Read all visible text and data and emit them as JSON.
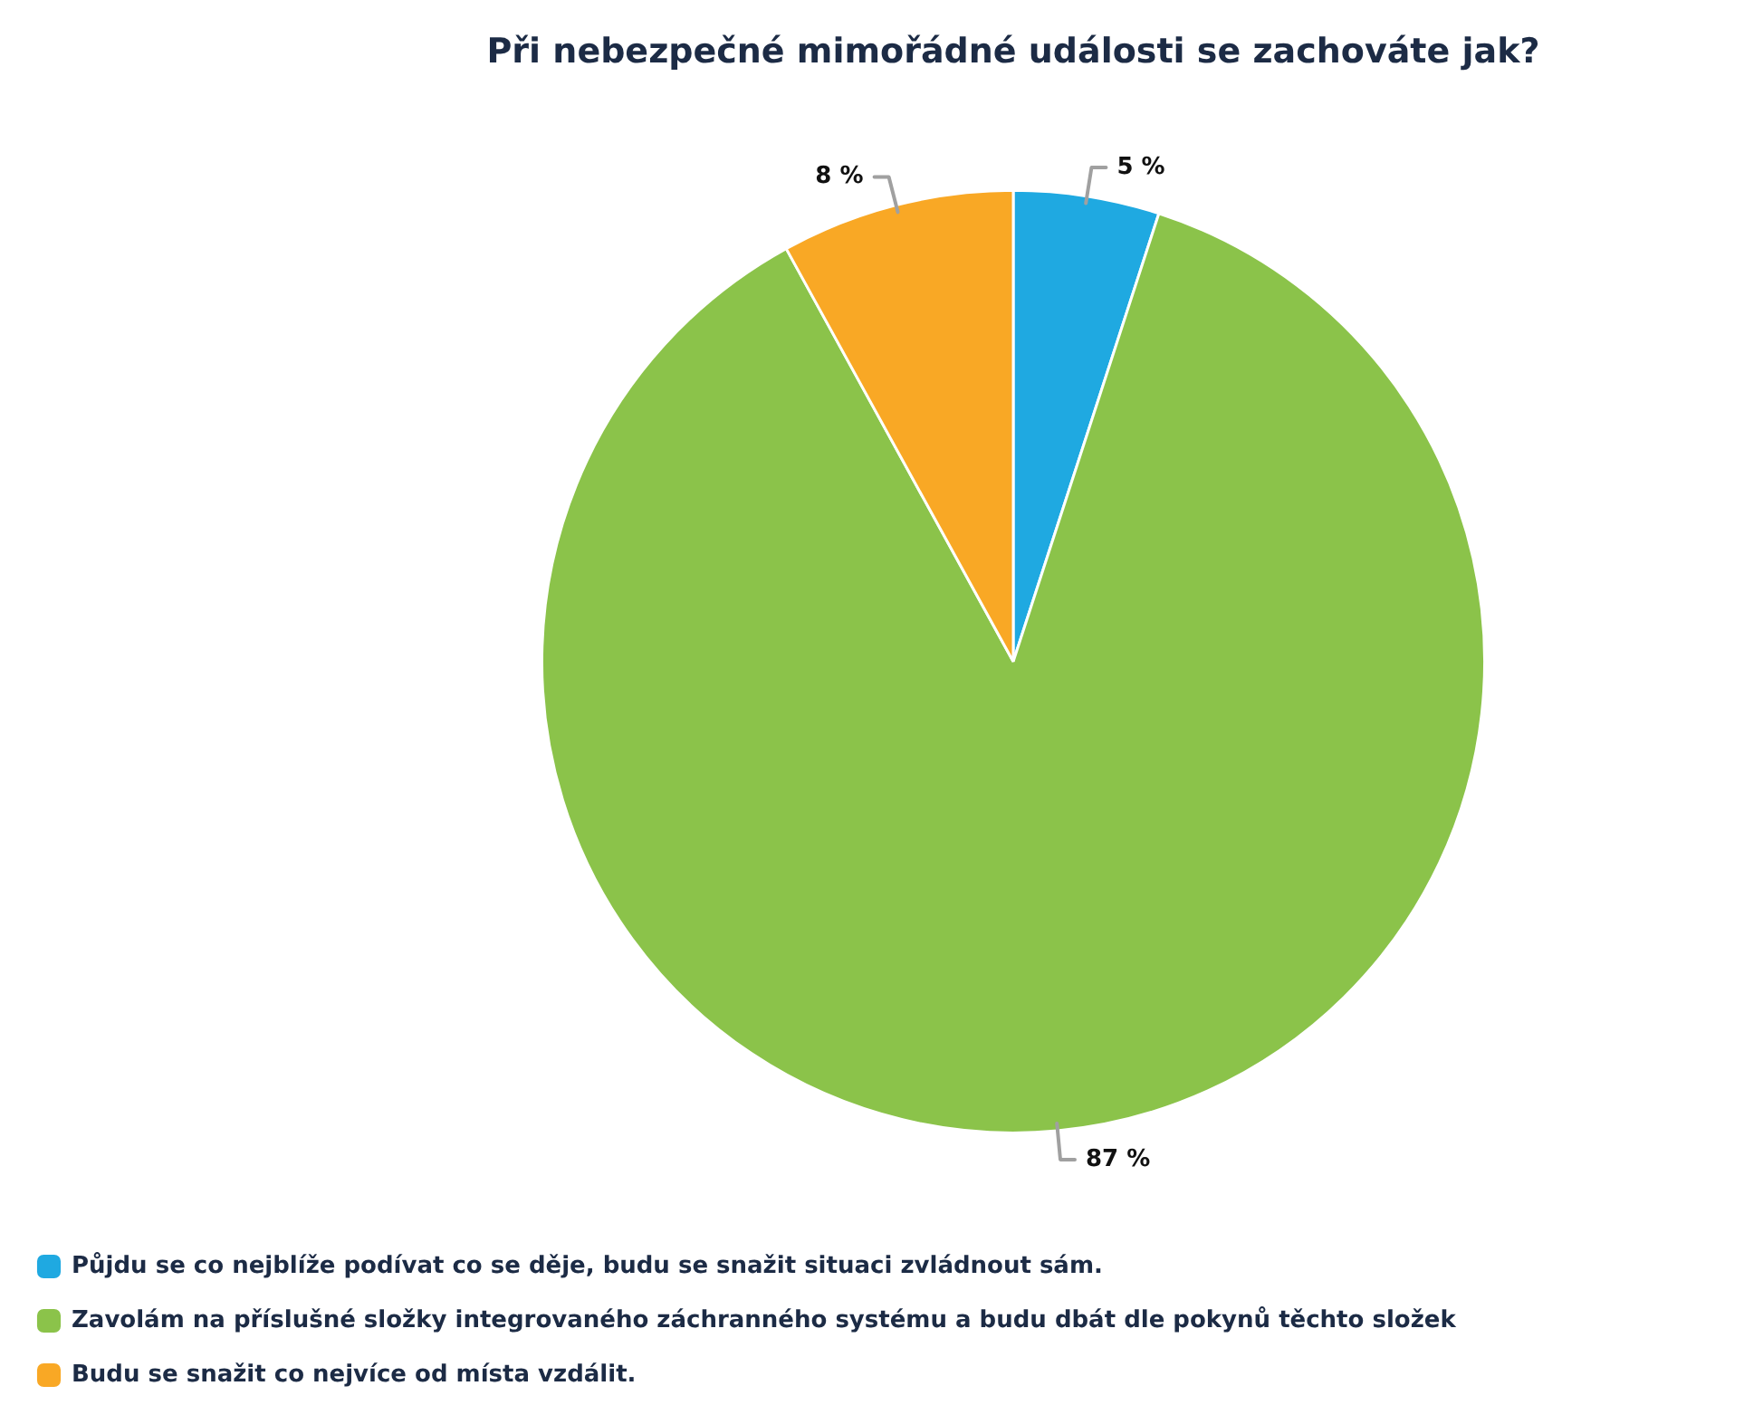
{
  "chart_data": {
    "type": "pie",
    "title": "Při nebezpečné mimořádné události se zachováte jak?",
    "categories": [
      "Půjdu se co nejblíže podívat co se děje, budu se snažit situaci zvládnout sám.",
      "Zavolám na příslušné složky integrovaného záchranného systému a budu dbát dle pokynů těchto složek",
      "Budu se snažit co nejvíce od místa vzdálit."
    ],
    "values": [
      5,
      87,
      8
    ],
    "colors": [
      "#1fa9e1",
      "#8bc34a",
      "#f9a825"
    ],
    "value_labels": [
      "5 %",
      "87 %",
      "8 %"
    ],
    "legend": "bottom left"
  }
}
